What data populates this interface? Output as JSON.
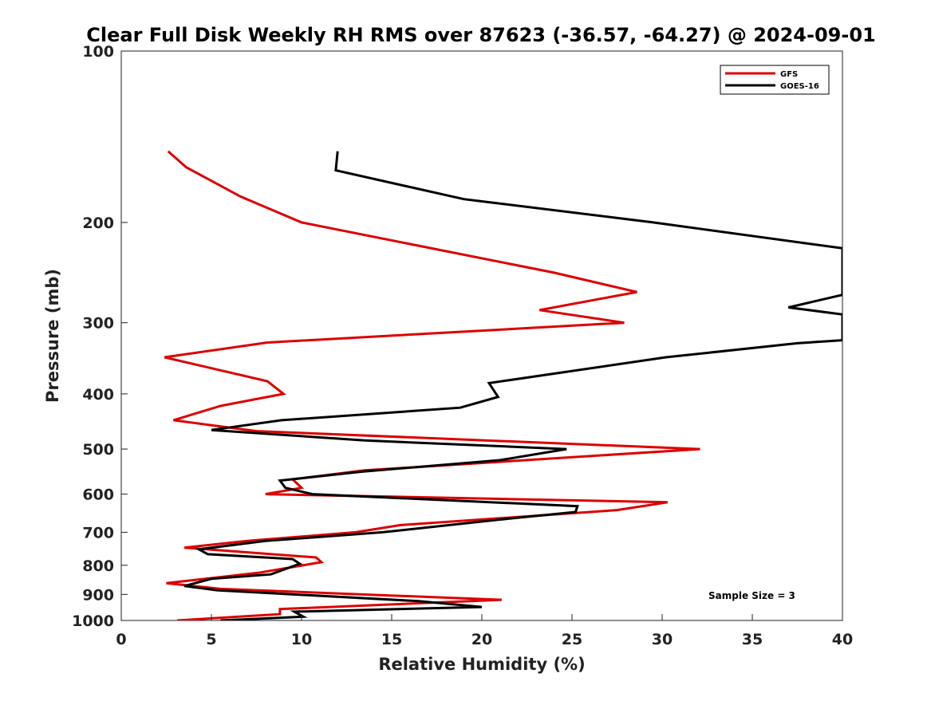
{
  "chart_data": {
    "type": "line",
    "title": "Clear Full Disk Weekly RH RMS over 87623 (-36.57, -64.27) @ 2024-09-01",
    "xlabel": "Relative Humidity (%)",
    "ylabel": "Pressure (mb)",
    "xlim": [
      0,
      40
    ],
    "ylim": [
      100,
      1000
    ],
    "y_scale": "log",
    "y_reversed": true,
    "grid": false,
    "legend_position": "top-right",
    "x_ticks": [
      0,
      5,
      10,
      15,
      20,
      25,
      30,
      35,
      40
    ],
    "y_ticks": [
      100,
      200,
      300,
      400,
      500,
      600,
      700,
      800,
      900,
      1000
    ],
    "annotation": "Sample Size = 3",
    "series": [
      {
        "name": "GFS",
        "color": "#dd0000",
        "x": [
          2.6,
          3.6,
          6.6,
          10.0,
          24.0,
          28.6,
          23.2,
          27.9,
          8.1,
          2.4,
          8.1,
          9.0,
          5.5,
          2.9,
          7.5,
          32.1,
          13.5,
          9.5,
          10.0,
          8.0,
          30.3,
          27.5,
          15.5,
          13.0,
          7.0,
          3.5,
          10.8,
          11.1,
          7.6,
          2.5,
          5.5,
          21.1,
          8.8,
          8.8,
          3.1
        ],
        "y": [
          150,
          160,
          180,
          200,
          245,
          265,
          285,
          300,
          325,
          345,
          380,
          400,
          420,
          445,
          465,
          500,
          545,
          565,
          585,
          600,
          620,
          640,
          680,
          700,
          725,
          745,
          775,
          790,
          825,
          860,
          880,
          920,
          955,
          975,
          1000
        ]
      },
      {
        "name": "GOES-16",
        "color": "#000000",
        "x": [
          12.0,
          11.9,
          19.0,
          29.5,
          40.0,
          40.0,
          37.0,
          40.0,
          40.0,
          37.5,
          30.2,
          20.4,
          20.9,
          18.8,
          8.9,
          5.0,
          13.5,
          24.7,
          21.0,
          13.3,
          8.8,
          9.1,
          10.6,
          25.3,
          25.2,
          21.0,
          14.5,
          8.0,
          4.3,
          4.8,
          9.5,
          9.9,
          8.3,
          5.0,
          3.5,
          5.3,
          16.5,
          20.0,
          9.6,
          10.1,
          5.5
        ],
        "y": [
          150,
          162,
          182,
          200,
          222,
          268,
          282,
          290,
          322,
          326,
          345,
          383,
          405,
          423,
          445,
          463,
          483,
          500,
          523,
          548,
          568,
          585,
          600,
          630,
          645,
          665,
          700,
          725,
          750,
          765,
          780,
          795,
          830,
          845,
          870,
          885,
          925,
          947,
          965,
          985,
          1000
        ]
      }
    ]
  }
}
